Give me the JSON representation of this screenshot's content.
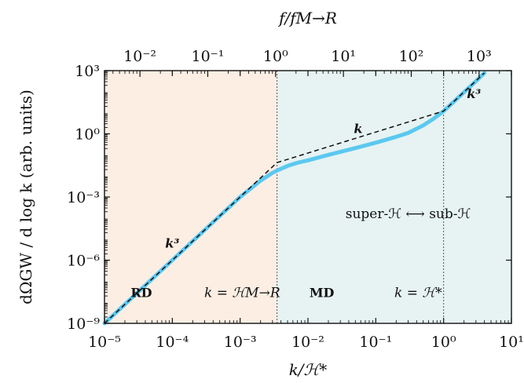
{
  "chart_data": {
    "type": "line",
    "title": "",
    "xlabel": "k/ℋ*",
    "ylabel": "dΩGW / d log k (arb. units)",
    "top_xlabel": "f/fM→R",
    "x_scale": "log",
    "y_scale": "log",
    "xlim": [
      1e-05,
      10
    ],
    "ylim": [
      1e-09,
      1000
    ],
    "top_xlim": [
      0.003,
      3000
    ],
    "grid": false,
    "x_ticks": [
      1e-05,
      0.0001,
      0.001,
      0.01,
      0.1,
      1,
      10
    ],
    "x_tick_labels": [
      "10⁻⁵",
      "10⁻⁴",
      "10⁻³",
      "10⁻²",
      "10⁻¹",
      "10⁰",
      "10¹"
    ],
    "y_ticks": [
      1e-09,
      1e-06,
      0.001,
      1,
      1000
    ],
    "y_tick_labels": [
      "10⁻⁹",
      "10⁻⁶",
      "10⁻³",
      "10⁰",
      "10³"
    ],
    "top_ticks": [
      0.01,
      0.1,
      1,
      10,
      100,
      1000
    ],
    "top_tick_labels": [
      "10⁻²",
      "10⁻¹",
      "10⁰",
      "10¹",
      "10²",
      "10³"
    ],
    "regions": [
      {
        "label": "RD",
        "x": [
          1e-05,
          0.0035
        ],
        "color": "#fdeee4",
        "label_color": "#f58a3c"
      },
      {
        "label": "MD",
        "x": [
          0.0035,
          10
        ],
        "color": "#e6f3f2",
        "label_color": "#3fb1aa"
      }
    ],
    "vlines": [
      {
        "x": 0.0035,
        "label": "k = ℋM→R"
      },
      {
        "x": 1,
        "label": "k = ℋ*"
      }
    ],
    "series": [
      {
        "style": "solid",
        "color": "#5bc8f0",
        "x": [
          1e-05,
          3e-05,
          0.0001,
          0.0003,
          0.001,
          0.002,
          0.003,
          0.0035,
          0.005,
          0.007,
          0.01,
          0.02,
          0.05,
          0.1,
          0.2,
          0.3,
          0.5,
          0.7,
          1,
          1.5,
          2,
          3,
          4
        ],
        "y": [
          1e-09,
          2.7e-08,
          1e-06,
          2.7e-05,
          0.001,
          0.006,
          0.014,
          0.018,
          0.03,
          0.042,
          0.055,
          0.1,
          0.21,
          0.38,
          0.72,
          1.1,
          2.5,
          5,
          12,
          40,
          95,
          320,
          780
        ]
      },
      {
        "style": "dashed",
        "color": "#111111",
        "x": [
          1e-05,
          0.0035,
          1,
          1,
          4
        ],
        "y": [
          1e-09,
          0.043,
          12,
          12,
          780
        ]
      }
    ],
    "annotations": [
      {
        "text": "k³",
        "x": 0.0001,
        "y": 4e-06,
        "color": "#f58a3c"
      },
      {
        "text": "k",
        "x": 0.055,
        "y": 1.1,
        "color": "#3fb1aa"
      },
      {
        "text": "k³",
        "x": 2.8,
        "y": 50,
        "color": "#888888"
      },
      {
        "text": "super-ℋ ⟷ sub-ℋ",
        "x": 0.3,
        "y": 0.0001,
        "color": "#111111"
      }
    ],
    "region_labels": [
      {
        "text": "RD",
        "color": "#f58a3c"
      },
      {
        "text": "MD",
        "color": "#3fb1aa"
      }
    ]
  }
}
